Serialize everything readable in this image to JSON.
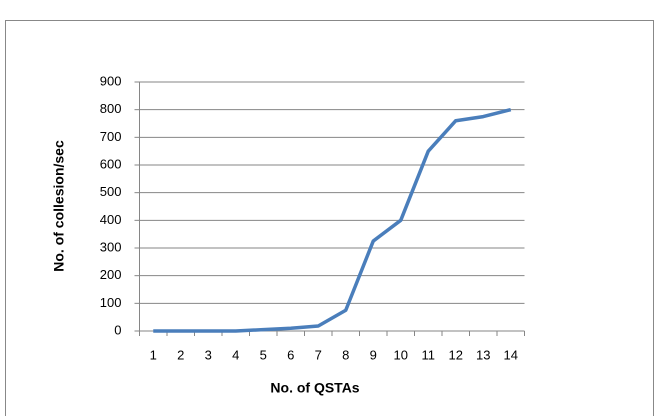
{
  "chart_data": {
    "type": "line",
    "xlabel": "No. of QSTAs",
    "ylabel": "No. of collesion/sec",
    "categories": [
      "1",
      "2",
      "3",
      "4",
      "5",
      "6",
      "7",
      "8",
      "9",
      "10",
      "11",
      "12",
      "13",
      "14"
    ],
    "series": [
      {
        "color": "#4a7ebb",
        "values": [
          0,
          0,
          0,
          0,
          5,
          10,
          18,
          75,
          325,
          400,
          650,
          760,
          775,
          800
        ]
      }
    ],
    "ylim": [
      0,
      900
    ],
    "yticks": [
      0,
      100,
      200,
      300,
      400,
      500,
      600,
      700,
      800,
      900
    ],
    "grid": true
  }
}
